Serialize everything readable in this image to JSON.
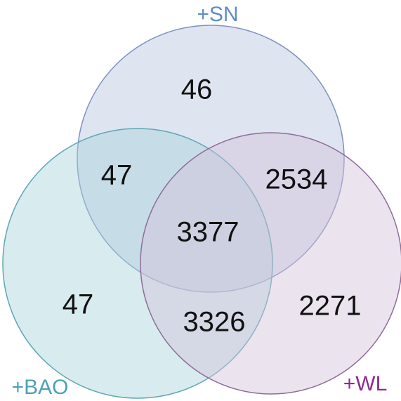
{
  "sets": [
    {
      "label": "+SN",
      "color": "#b7c4e0",
      "stroke": "#7f93bd",
      "label_color": "#5f8cc8"
    },
    {
      "label": "+BAO",
      "color": "#a9d3dc",
      "stroke": "#5fa6b6",
      "label_color": "#4ba2b4"
    },
    {
      "label": "+WL",
      "color": "#d3c0da",
      "stroke": "#8e6c9b",
      "label_color": "#8e2b8e"
    }
  ],
  "regions": [
    {
      "sets": "SN",
      "value": 46
    },
    {
      "sets": "SN+BAO",
      "value": 47
    },
    {
      "sets": "SN+WL",
      "value": 2534
    },
    {
      "sets": "SN+BAO+WL",
      "value": 3377
    },
    {
      "sets": "BAO",
      "value": 47
    },
    {
      "sets": "BAO+WL",
      "value": 3326
    },
    {
      "sets": "WL",
      "value": 2271
    }
  ]
}
